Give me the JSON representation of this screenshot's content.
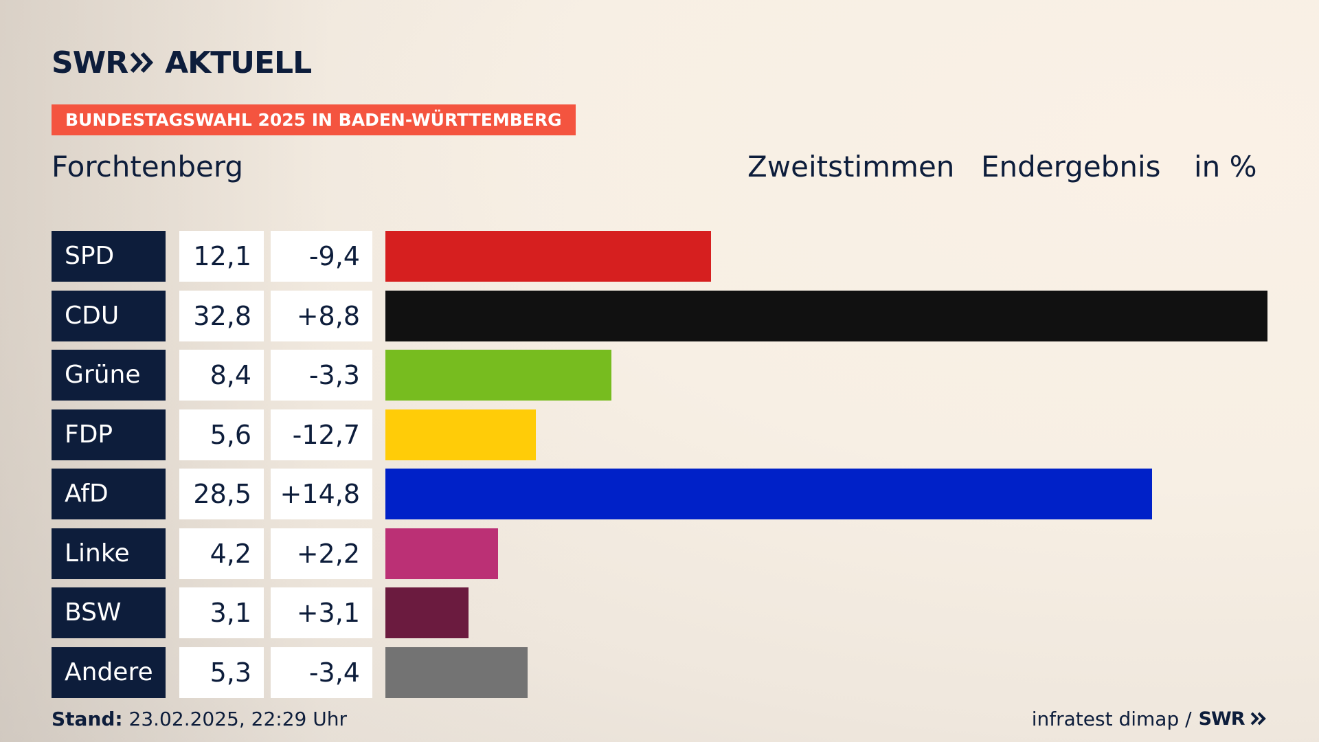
{
  "brand": {
    "logo_left": "SWR",
    "logo_right": "AKTUELL",
    "small_logo": "SWR",
    "logo_icon": "double-chevron-right-icon"
  },
  "banner": "BUNDESTAGSWAHL 2025 IN BADEN-WÜRTTEMBERG",
  "header": {
    "place": "Forchtenberg",
    "vote_type": "Zweitstimmen",
    "result_type": "Endergebnis",
    "unit": "in %"
  },
  "footer": {
    "stand_label": "Stand:",
    "stand_value": "23.02.2025, 22:29 Uhr",
    "source": "infratest dimap /"
  },
  "colors": {
    "accent": "#f4543f",
    "navy": "#0d1d3b"
  },
  "chart_data": {
    "type": "bar",
    "orientation": "horizontal",
    "categories": [
      "SPD",
      "CDU",
      "Grüne",
      "FDP",
      "AfD",
      "Linke",
      "BSW",
      "Andere"
    ],
    "values": [
      12.1,
      32.8,
      8.4,
      5.6,
      28.5,
      4.2,
      3.1,
      5.3
    ],
    "value_labels": [
      "12,1",
      "32,8",
      "8,4",
      "5,6",
      "28,5",
      "4,2",
      "3,1",
      "5,3"
    ],
    "changes": [
      -9.4,
      8.8,
      -3.3,
      -12.7,
      14.8,
      2.2,
      3.1,
      -3.4
    ],
    "change_labels": [
      "-9,4",
      "+8,8",
      "-3,3",
      "-12,7",
      "+14,8",
      "+2,2",
      "+3,1",
      "-3,4"
    ],
    "colors": [
      "#d61f1f",
      "#111111",
      "#77bc1f",
      "#ffcc08",
      "#0021c8",
      "#bb3075",
      "#6b1b3f",
      "#737373"
    ],
    "xlim": [
      0,
      32.8
    ],
    "grid": false,
    "legend": "none"
  }
}
